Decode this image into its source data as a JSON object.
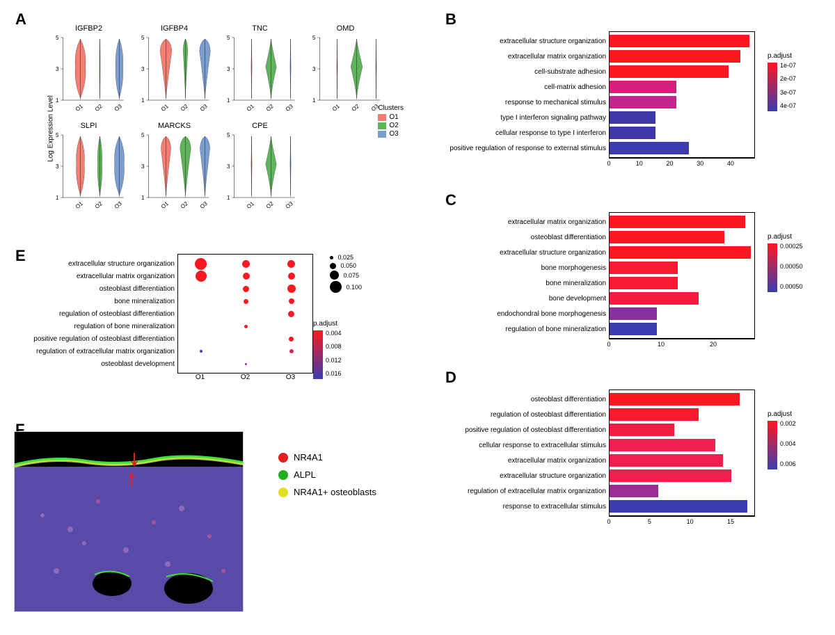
{
  "panels": {
    "A": {
      "label": "A"
    },
    "B": {
      "label": "B"
    },
    "C": {
      "label": "C"
    },
    "D": {
      "label": "D"
    },
    "E": {
      "label": "E"
    },
    "F": {
      "label": "F"
    }
  },
  "violin": {
    "y_label": "Log Expression Level",
    "y_ticks": [
      "1",
      "3",
      "5"
    ],
    "x_ticks": [
      "O1",
      "O2",
      "O3"
    ],
    "legend_title": "Clusters",
    "clusters": [
      {
        "name": "O1",
        "color": "#f27e73"
      },
      {
        "name": "O2",
        "color": "#5fb35b"
      },
      {
        "name": "O3",
        "color": "#7b9ed1"
      }
    ],
    "genes": [
      {
        "name": "IGFBP2",
        "widths": [
          0.7,
          0.05,
          0.5
        ],
        "shape": "full"
      },
      {
        "name": "IGFBP4",
        "widths": [
          0.65,
          0.25,
          0.6
        ],
        "shape": "top"
      },
      {
        "name": "TNC",
        "widths": [
          0.05,
          0.6,
          0.05
        ],
        "shape": "mid"
      },
      {
        "name": "OMD",
        "widths": [
          0.05,
          0.65,
          0.05
        ],
        "shape": "mid"
      },
      {
        "name": "SLPI",
        "widths": [
          0.55,
          0.3,
          0.65
        ],
        "shape": "full"
      },
      {
        "name": "MARCKS",
        "widths": [
          0.55,
          0.6,
          0.55
        ],
        "shape": "top"
      },
      {
        "name": "CPE",
        "widths": [
          0.05,
          0.6,
          0.05
        ],
        "shape": "mid"
      }
    ]
  },
  "barchart_B": {
    "padjust_label": "p.adjust",
    "xmax": 48,
    "xticks": [
      0,
      10,
      20,
      30,
      40
    ],
    "gradient_top": "#fb1820",
    "gradient_bottom": "#3a3db0",
    "legend_ticks": [
      "1e-07",
      "2e-07",
      "3e-07",
      "4e-07"
    ],
    "bars": [
      {
        "label": "extracellular structure organization",
        "value": 46,
        "color": "#fb1820"
      },
      {
        "label": "extracellular matrix organization",
        "value": 43,
        "color": "#fb1820"
      },
      {
        "label": "cell-substrate adhesion",
        "value": 39,
        "color": "#fb1820"
      },
      {
        "label": "cell-matrix adhesion",
        "value": 22,
        "color": "#d4207a"
      },
      {
        "label": "response to mechanical stimulus",
        "value": 22,
        "color": "#c4258c"
      },
      {
        "label": "type I interferon signaling pathway",
        "value": 15,
        "color": "#4038aa"
      },
      {
        "label": "cellular response to type I interferon",
        "value": 15,
        "color": "#4038aa"
      },
      {
        "label": "positive regulation of response to external stimulus",
        "value": 26,
        "color": "#3a3db0"
      }
    ]
  },
  "barchart_C": {
    "padjust_label": "p.adjust",
    "xmax": 28,
    "xticks": [
      0,
      10,
      20
    ],
    "gradient_top": "#fb1820",
    "gradient_bottom": "#3a3db0",
    "legend_ticks": [
      "0.00025",
      "0.00050",
      "0.00050"
    ],
    "bars": [
      {
        "label": "extracellular matrix organization",
        "value": 26,
        "color": "#fb1820"
      },
      {
        "label": "osteoblast differentiation",
        "value": 22,
        "color": "#fb1820"
      },
      {
        "label": "extracellular structure organization",
        "value": 27,
        "color": "#fb1820"
      },
      {
        "label": "bone morphogenesis",
        "value": 13,
        "color": "#f51a30"
      },
      {
        "label": "bone mineralization",
        "value": 13,
        "color": "#f51a30"
      },
      {
        "label": "bone development",
        "value": 17,
        "color": "#f21d3e"
      },
      {
        "label": "endochondral bone morphogenesis",
        "value": 9,
        "color": "#8a2fa0"
      },
      {
        "label": "regulation of bone mineralization",
        "value": 9,
        "color": "#3a3db0"
      }
    ]
  },
  "barchart_D": {
    "padjust_label": "p.adjust",
    "xmax": 18,
    "xticks": [
      0,
      5,
      10,
      15
    ],
    "gradient_top": "#fb1820",
    "gradient_bottom": "#3a3db0",
    "legend_ticks": [
      "0.002",
      "0.004",
      "0.006"
    ],
    "bars": [
      {
        "label": "osteoblast differentiation",
        "value": 16,
        "color": "#fb1820"
      },
      {
        "label": "regulation of osteoblast differentiation",
        "value": 11,
        "color": "#f71a2c"
      },
      {
        "label": "positive regulation of osteoblast differentiation",
        "value": 8,
        "color": "#f21e42"
      },
      {
        "label": "cellular response to extracellular stimulus",
        "value": 13,
        "color": "#ee2050"
      },
      {
        "label": "extracellular matrix organization",
        "value": 14,
        "color": "#ee2050"
      },
      {
        "label": "extracellular structure organization",
        "value": 15,
        "color": "#ee2050"
      },
      {
        "label": "regulation of extracellular matrix organization",
        "value": 6,
        "color": "#9c2c94"
      },
      {
        "label": "response to extracellular stimulus",
        "value": 17,
        "color": "#3a3db0"
      }
    ]
  },
  "dotplot": {
    "padjust_label": "p.adjust",
    "gradient_top": "#fb1820",
    "gradient_bottom": "#3a3db0",
    "legend_ticks": [
      "0.004",
      "0.008",
      "0.012",
      "0.016"
    ],
    "size_legend": [
      {
        "label": "0.025",
        "size": 5
      },
      {
        "label": "0.050",
        "size": 9
      },
      {
        "label": "0.075",
        "size": 13
      },
      {
        "label": "0.100",
        "size": 17
      }
    ],
    "x_labels": [
      "O1",
      "O2",
      "O3"
    ],
    "rows": [
      {
        "label": "extracellular structure organization",
        "dots": [
          {
            "size": 17,
            "color": "#fb1820"
          },
          {
            "size": 11,
            "color": "#fb1820"
          },
          {
            "size": 11,
            "color": "#fb1820"
          }
        ]
      },
      {
        "label": "extracellular matrix organization",
        "dots": [
          {
            "size": 16,
            "color": "#fb1820"
          },
          {
            "size": 10,
            "color": "#fb1820"
          },
          {
            "size": 10,
            "color": "#fb1820"
          }
        ]
      },
      {
        "label": "osteoblast differentiation",
        "dots": [
          null,
          {
            "size": 9,
            "color": "#fb1820"
          },
          {
            "size": 12,
            "color": "#fb1820"
          }
        ]
      },
      {
        "label": "bone mineralization",
        "dots": [
          null,
          {
            "size": 7,
            "color": "#fb1820"
          },
          {
            "size": 8,
            "color": "#fb1820"
          }
        ]
      },
      {
        "label": "regulation of osteoblast differentiation",
        "dots": [
          null,
          null,
          {
            "size": 9,
            "color": "#fb1820"
          }
        ]
      },
      {
        "label": "regulation of bone mineralization",
        "dots": [
          null,
          {
            "size": 5,
            "color": "#fb1820"
          },
          null
        ]
      },
      {
        "label": "positive regulation of osteoblast differentiation",
        "dots": [
          null,
          null,
          {
            "size": 7,
            "color": "#fb1820"
          }
        ]
      },
      {
        "label": "regulation of extracellular matrix organization",
        "dots": [
          {
            "size": 4,
            "color": "#3a3db0"
          },
          null,
          {
            "size": 6,
            "color": "#e0225a"
          }
        ]
      },
      {
        "label": "osteoblast development",
        "dots": [
          null,
          {
            "size": 3,
            "color": "#8a2fa0"
          },
          null
        ]
      }
    ]
  },
  "panelF": {
    "legend": [
      {
        "label": "NR4A1",
        "color": "#e02020"
      },
      {
        "label": "ALPL",
        "color": "#20b020"
      },
      {
        "label": "NR4A1+ osteoblasts",
        "color": "#e0e020"
      }
    ]
  }
}
